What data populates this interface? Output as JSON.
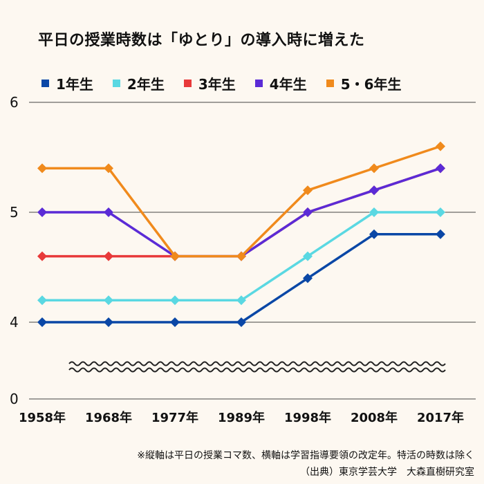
{
  "chart_data": {
    "type": "line",
    "title": "平日の授業時数は「ゆとり」の導入時に増えた",
    "xlabel": "",
    "ylabel": "",
    "categories": [
      "1958年",
      "1968年",
      "1977年",
      "1989年",
      "1998年",
      "2008年",
      "2017年"
    ],
    "y_ticks": [
      "6",
      "5",
      "4",
      "0"
    ],
    "ylim": [
      4,
      6
    ],
    "axis_break": "between 0 and 4",
    "grid": true,
    "legend_position": "top",
    "series": [
      {
        "name": "1年生",
        "color": "#0a47a6",
        "values": [
          4,
          4,
          4,
          4,
          4.4,
          4.8,
          4.8
        ]
      },
      {
        "name": "2年生",
        "color": "#5ad8e2",
        "values": [
          4.2,
          4.2,
          4.2,
          4.2,
          4.6,
          5,
          5
        ]
      },
      {
        "name": "3年生",
        "color": "#e83a3a",
        "values": [
          4.6,
          4.6,
          4.6,
          4.6,
          5,
          5.2,
          5.4
        ]
      },
      {
        "name": "4年生",
        "color": "#5b2bd6",
        "values": [
          5,
          5,
          4.6,
          4.6,
          5,
          5.2,
          5.4
        ]
      },
      {
        "name": "5・6年生",
        "color": "#f08a1c",
        "values": [
          5.4,
          5.4,
          4.6,
          4.6,
          5.2,
          5.4,
          5.6
        ]
      }
    ]
  },
  "footnote": "※縦軸は平日の授業コマ数、横軸は学習指導要領の改定年。特活の時数は除く",
  "source": "（出典）東京学芸大学　大森直樹研究室"
}
